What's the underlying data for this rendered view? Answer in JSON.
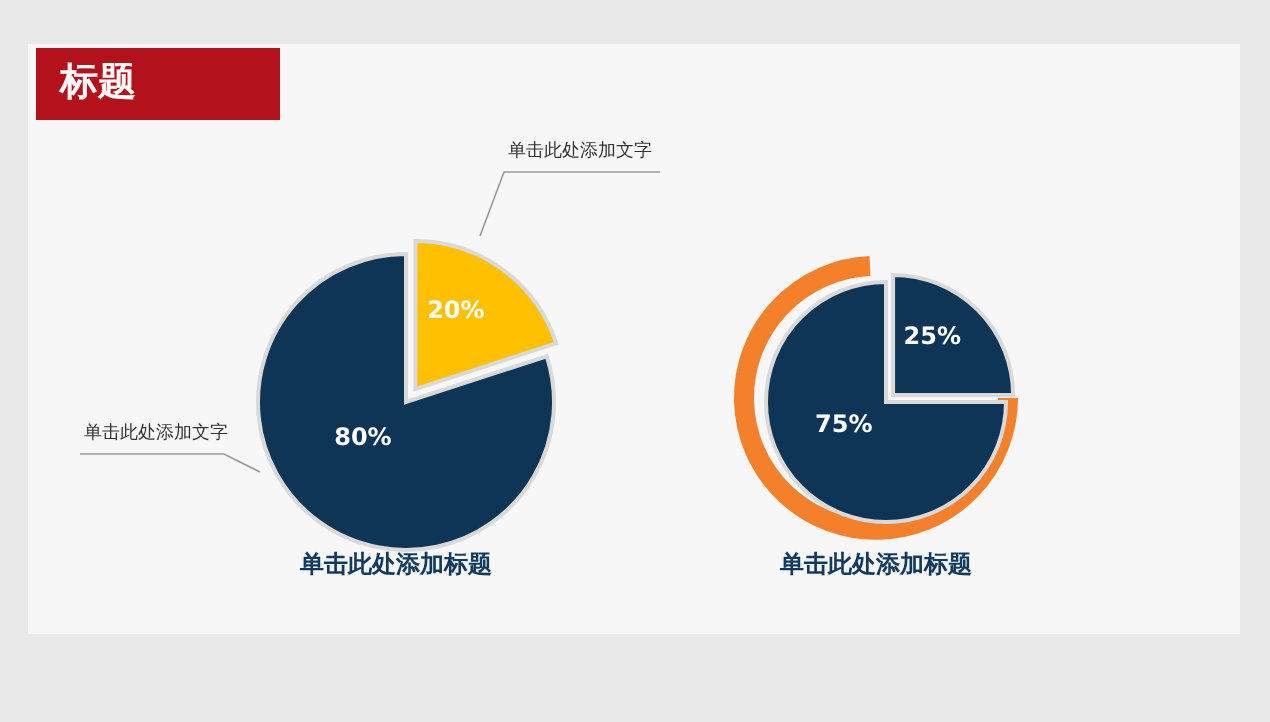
{
  "chart_data": [
    {
      "type": "pie",
      "title": "单击此处添加标题",
      "categories": [
        null,
        null
      ],
      "values": [
        20,
        80
      ],
      "colors": [
        "#ffc000",
        "#0e3556"
      ],
      "value_labels": [
        "20%",
        "80%"
      ],
      "annotations": [
        "标题",
        "单击此处添加文字",
        "单击此处添加文字"
      ]
    },
    {
      "type": "pie",
      "title": "单击此处添加标题",
      "categories": [
        null,
        null
      ],
      "values": [
        25,
        75
      ],
      "colors": [
        "#0e3556",
        "#0e3556"
      ],
      "value_labels": [
        "25%",
        "75%"
      ]
    }
  ]
}
